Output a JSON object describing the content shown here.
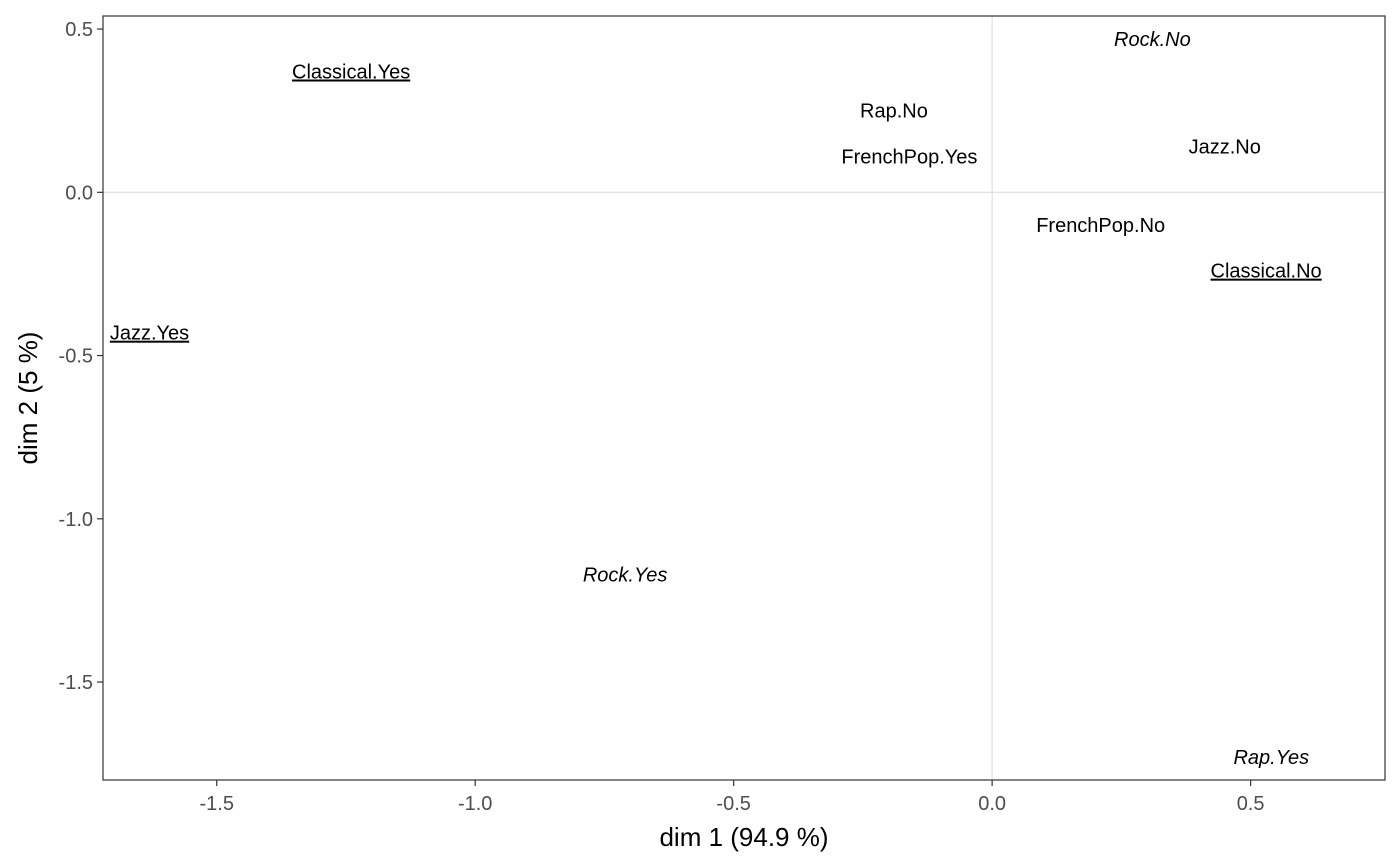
{
  "chart_data": {
    "type": "scatter",
    "xlabel": "dim 1 (94.9 %)",
    "ylabel": "dim 2 (5 %)",
    "xlim": [
      -1.72,
      0.76
    ],
    "ylim": [
      -1.8,
      0.54
    ],
    "x_ticks": [
      -1.5,
      -1.0,
      -0.5,
      0.0,
      0.5
    ],
    "x_tick_labels": [
      "-1.5",
      "-1.0",
      "-0.5",
      "0.0",
      "0.5"
    ],
    "y_ticks": [
      0.5,
      0.0,
      -0.5,
      -1.0,
      -1.5
    ],
    "y_tick_labels": [
      "0.5",
      "0.0",
      "-0.5",
      "-1.0",
      "-1.5"
    ],
    "reference_lines": {
      "x": 0,
      "y": 0
    },
    "grid": false,
    "points": [
      {
        "label": "Classical.Yes",
        "x": -1.24,
        "y": 0.37,
        "style": "underline"
      },
      {
        "label": "Rap.No",
        "x": -0.19,
        "y": 0.25,
        "style": "plain"
      },
      {
        "label": "FrenchPop.Yes",
        "x": -0.16,
        "y": 0.11,
        "style": "plain"
      },
      {
        "label": "Rock.No",
        "x": 0.31,
        "y": 0.47,
        "style": "italic"
      },
      {
        "label": "Jazz.No",
        "x": 0.45,
        "y": 0.14,
        "style": "plain"
      },
      {
        "label": "FrenchPop.No",
        "x": 0.21,
        "y": -0.1,
        "style": "plain"
      },
      {
        "label": "Classical.No",
        "x": 0.53,
        "y": -0.24,
        "style": "underline"
      },
      {
        "label": "Jazz.Yes",
        "x": -1.63,
        "y": -0.43,
        "style": "underline"
      },
      {
        "label": "Rock.Yes",
        "x": -0.71,
        "y": -1.17,
        "style": "italic"
      },
      {
        "label": "Rap.Yes",
        "x": 0.54,
        "y": -1.73,
        "style": "italic"
      }
    ]
  }
}
